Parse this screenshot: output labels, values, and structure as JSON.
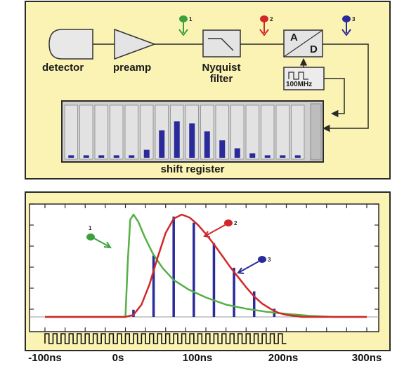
{
  "diagram": {
    "blocks": {
      "detector": "detector",
      "preamp": "preamp",
      "filter_line1": "Nyquist",
      "filter_line2": "filter",
      "adc_a": "A",
      "adc_d": "D",
      "clock": "100MHz",
      "shift_register": "shift register"
    },
    "markers": [
      {
        "num": "1",
        "color": "#3ca03c"
      },
      {
        "num": "2",
        "color": "#d02828"
      },
      {
        "num": "3",
        "color": "#2a2a9a"
      }
    ],
    "register_bars": [
      0.05,
      0.05,
      0.05,
      0.05,
      0.05,
      0.16,
      0.55,
      0.73,
      0.69,
      0.53,
      0.35,
      0.19,
      0.09,
      0.05,
      0.05,
      0.05
    ],
    "colors": {
      "background": "#fbf3b4",
      "frame": "#2a2a2a",
      "bar": "#2a2a9a"
    }
  },
  "chart_data": {
    "type": "line",
    "x_ticks": [
      "-100ns",
      "0s",
      "100ns",
      "200ns",
      "300ns"
    ],
    "xlim": [
      -100,
      300
    ],
    "series": [
      {
        "id": "1",
        "color": "#55b045",
        "kind": "detector pulse",
        "x": [
          -100,
          0,
          3,
          6,
          10,
          16,
          24,
          34,
          46,
          60,
          78,
          100,
          125,
          150,
          175,
          200,
          230,
          260,
          300
        ],
        "y": [
          0,
          0,
          0.55,
          0.95,
          1.0,
          0.93,
          0.78,
          0.62,
          0.48,
          0.36,
          0.27,
          0.19,
          0.12,
          0.08,
          0.05,
          0.03,
          0.01,
          0.0,
          0.0
        ]
      },
      {
        "id": "2",
        "color": "#d02828",
        "kind": "filtered pulse",
        "x": [
          -100,
          0,
          10,
          20,
          30,
          40,
          50,
          60,
          70,
          80,
          90,
          100,
          110,
          120,
          130,
          140,
          150,
          160,
          170,
          180,
          190,
          200,
          220,
          240,
          300
        ],
        "y": [
          0,
          0,
          0.02,
          0.12,
          0.32,
          0.58,
          0.82,
          0.96,
          1.0,
          0.97,
          0.9,
          0.81,
          0.71,
          0.6,
          0.49,
          0.39,
          0.29,
          0.2,
          0.13,
          0.08,
          0.04,
          0.02,
          0.0,
          0.0,
          0.0
        ]
      },
      {
        "id": "3",
        "color": "#2a2a9a",
        "kind": "samples",
        "x": [
          10,
          35,
          60,
          85,
          110,
          135,
          160,
          185
        ],
        "y": [
          0.07,
          0.6,
          0.98,
          0.92,
          0.72,
          0.48,
          0.25,
          0.08
        ]
      }
    ],
    "clock_period_ns": 10,
    "clock_range": [
      -100,
      200
    ]
  }
}
